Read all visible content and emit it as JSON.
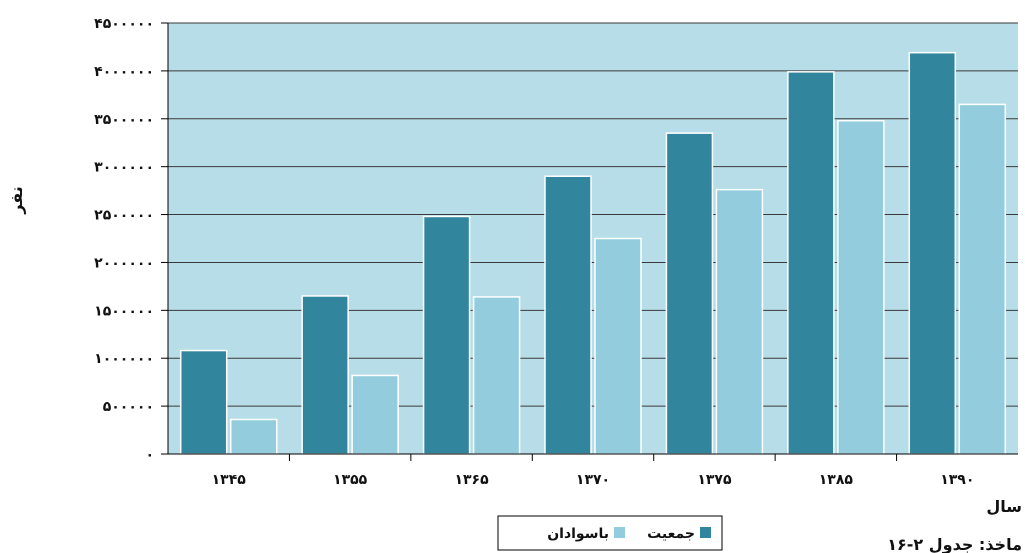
{
  "chart_data": {
    "type": "bar",
    "title": "",
    "xlabel": "سال",
    "ylabel": "نفر",
    "note": "ماخذ: جدول ۲-۱۶",
    "categories": [
      "۱۳۴۵",
      "۱۳۵۵",
      "۱۳۶۵",
      "۱۳۷۰",
      "۱۳۷۵",
      "۱۳۸۵",
      "۱۳۹۰"
    ],
    "series": [
      {
        "name": "جمعیت",
        "color": "#31859C",
        "values": [
          1080000,
          1650000,
          2480000,
          2900000,
          3350000,
          3990000,
          4190000
        ]
      },
      {
        "name": "باسوادان",
        "color": "#93CDDD",
        "values": [
          360000,
          820000,
          1640000,
          2250000,
          2760000,
          3480000,
          3650000
        ]
      }
    ],
    "ylim": [
      0,
      4500000
    ],
    "yticks": [
      0,
      500000,
      1000000,
      1500000,
      2000000,
      2500000,
      3000000,
      3500000,
      4000000,
      4500000
    ],
    "ytick_labels": [
      "۰",
      "۵۰۰۰۰۰",
      "۱۰۰۰۰۰۰",
      "۱۵۰۰۰۰۰",
      "۲۰۰۰۰۰۰",
      "۲۵۰۰۰۰۰",
      "۳۰۰۰۰۰۰",
      "۳۵۰۰۰۰۰",
      "۴۰۰۰۰۰۰",
      "۴۵۰۰۰۰۰"
    ],
    "grid": true,
    "legend_position": "bottom",
    "plot_background": "#B7DEE8"
  }
}
